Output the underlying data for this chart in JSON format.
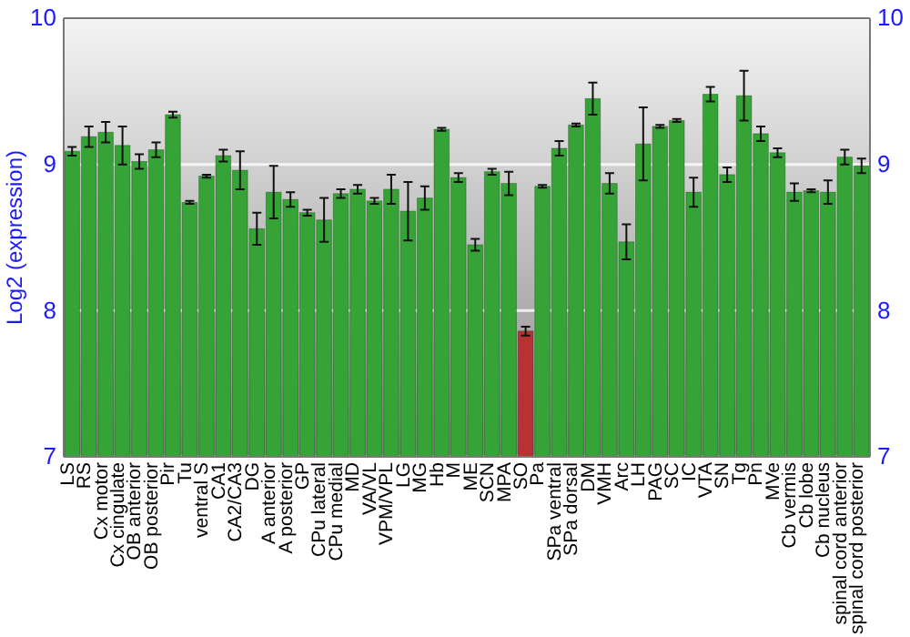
{
  "chart_data": {
    "type": "bar",
    "ylabel": "Log2 (expression)",
    "categories": [
      "LS",
      "RS",
      "Cx motor",
      "Cx cingulate",
      "OB anterior",
      "OB posterior",
      "Pir",
      "Tu",
      "ventral S",
      "CA1",
      "CA2/CA3",
      "DG",
      "A anterior",
      "A posterior",
      "GP",
      "CPu lateral",
      "CPu medial",
      "MD",
      "VA/VL",
      "VPM/VPL",
      "LG",
      "MG",
      "Hb",
      "M",
      "ME",
      "SCN",
      "MPA",
      "SO",
      "Pa",
      "SPa ventral",
      "SPa dorsal",
      "DM",
      "VMH",
      "Arc",
      "LH",
      "PAG",
      "SC",
      "IC",
      "VTA",
      "SN",
      "Tg",
      "Pn",
      "MVe",
      "Cb vermis",
      "Cb lobe",
      "Cb nucleus",
      "spinal cord anterior",
      "spinal cord posterior"
    ],
    "values": [
      9.09,
      9.19,
      9.22,
      9.13,
      9.02,
      9.1,
      9.34,
      8.74,
      8.92,
      9.06,
      8.96,
      8.56,
      8.81,
      8.76,
      8.67,
      8.62,
      8.8,
      8.83,
      8.75,
      8.83,
      8.68,
      8.77,
      9.24,
      8.91,
      8.45,
      8.95,
      8.87,
      7.86,
      8.85,
      9.11,
      9.27,
      9.45,
      8.87,
      8.47,
      9.14,
      9.26,
      9.3,
      8.81,
      9.48,
      8.93,
      9.47,
      9.21,
      9.08,
      8.81,
      8.82,
      8.81,
      9.05,
      8.99
    ],
    "errors": [
      0.03,
      0.07,
      0.07,
      0.13,
      0.05,
      0.05,
      0.02,
      0.01,
      0.01,
      0.04,
      0.13,
      0.11,
      0.18,
      0.05,
      0.02,
      0.15,
      0.03,
      0.03,
      0.02,
      0.1,
      0.2,
      0.08,
      0.01,
      0.03,
      0.04,
      0.02,
      0.08,
      0.03,
      0.01,
      0.05,
      0.01,
      0.11,
      0.07,
      0.12,
      0.25,
      0.01,
      0.01,
      0.1,
      0.05,
      0.05,
      0.17,
      0.05,
      0.03,
      0.06,
      0.01,
      0.08,
      0.05,
      0.05
    ],
    "colors": [
      "#36a336",
      "#36a336",
      "#36a336",
      "#36a336",
      "#36a336",
      "#36a336",
      "#36a336",
      "#36a336",
      "#36a336",
      "#36a336",
      "#36a336",
      "#36a336",
      "#36a336",
      "#36a336",
      "#36a336",
      "#36a336",
      "#36a336",
      "#36a336",
      "#36a336",
      "#36a336",
      "#36a336",
      "#36a336",
      "#36a336",
      "#36a336",
      "#36a336",
      "#36a336",
      "#36a336",
      "#b83232",
      "#36a336",
      "#36a336",
      "#36a336",
      "#36a336",
      "#36a336",
      "#36a336",
      "#36a336",
      "#36a336",
      "#36a336",
      "#36a336",
      "#36a336",
      "#36a336",
      "#36a336",
      "#36a336",
      "#36a336",
      "#36a336",
      "#36a336",
      "#36a336",
      "#36a336",
      "#36a336"
    ],
    "ylim": [
      7,
      10
    ],
    "yticks": [
      7,
      8,
      9,
      10
    ],
    "y2lim": [
      7,
      10
    ],
    "y2ticks": [
      7,
      8,
      9,
      10
    ],
    "grid": "y"
  }
}
